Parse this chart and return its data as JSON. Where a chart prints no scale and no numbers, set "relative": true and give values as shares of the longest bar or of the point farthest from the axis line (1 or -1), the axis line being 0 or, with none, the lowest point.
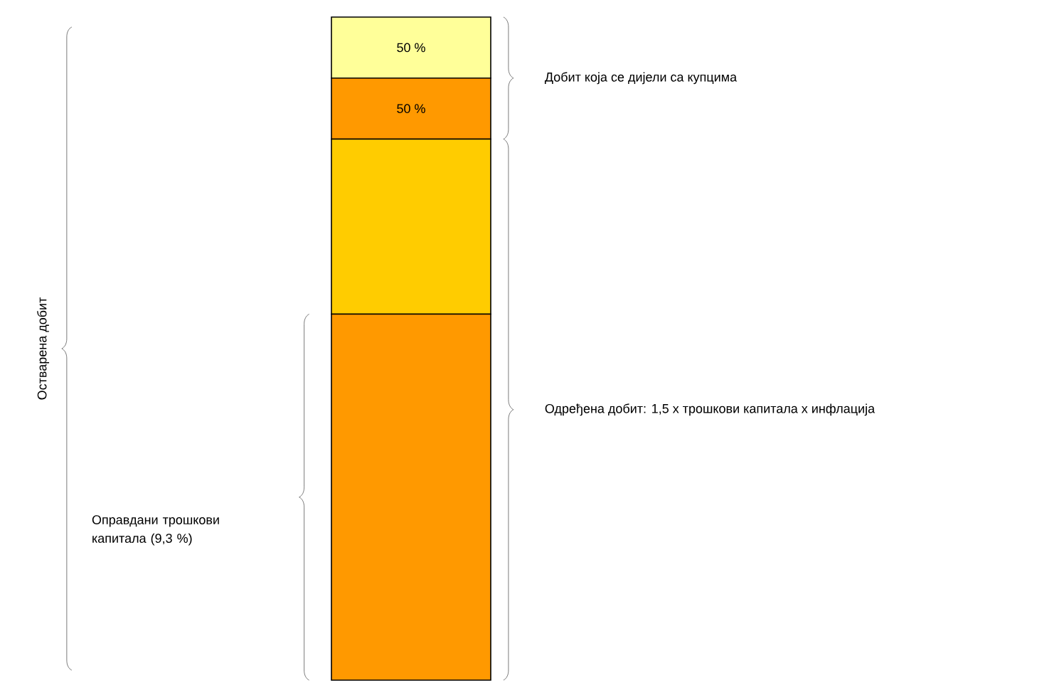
{
  "chart_data": {
    "type": "bar",
    "stacked": true,
    "relative": true,
    "categories": [
      null
    ],
    "series": [
      {
        "color": "#ff9900",
        "values": [
          0.552
        ]
      },
      {
        "color": "#ffcc00",
        "values": [
          0.264
        ]
      },
      {
        "color": "#ff9900",
        "values": [
          0.092
        ]
      },
      {
        "color": "#ffff99",
        "values": [
          0.092
        ]
      }
    ],
    "annotations": [
      "Остварена добит",
      "Добит која се дијели са купцима",
      "Одређена добит: 1,5 x трошкови капитала x инфлација",
      "Оправдани трошкови капитала (9,3 %)",
      "50 %",
      "50 %"
    ]
  }
}
